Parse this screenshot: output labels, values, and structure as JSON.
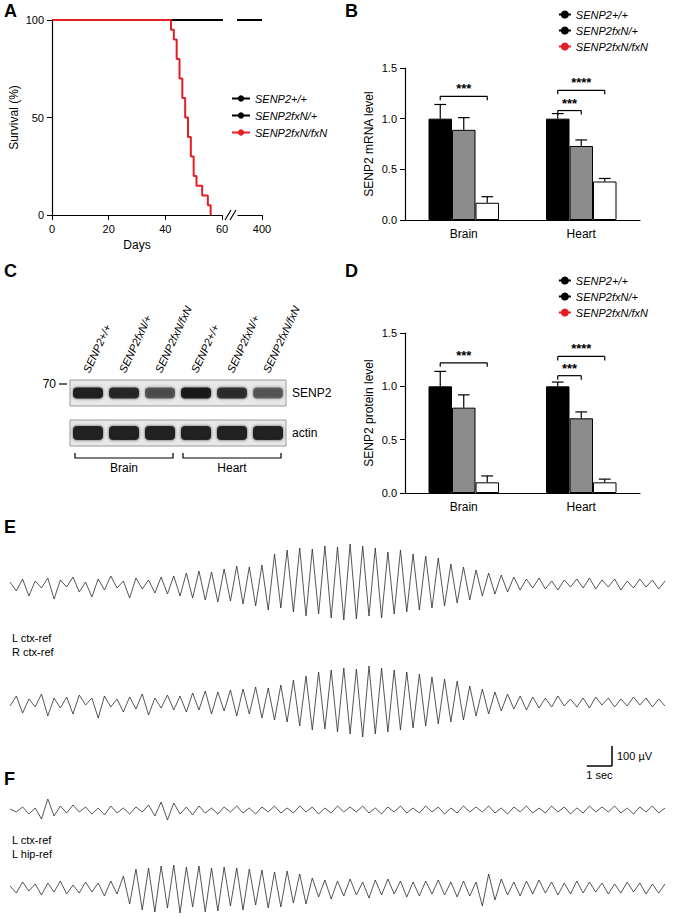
{
  "chart_data": [
    {
      "panel": "A",
      "type": "line",
      "xlabel": "Days",
      "ylabel": "Survival (%)",
      "xlim": [
        0,
        400
      ],
      "xticks": [
        0,
        20,
        40,
        60,
        400
      ],
      "x_break": [
        60,
        390
      ],
      "ylim": [
        0,
        100
      ],
      "yticks": [
        0,
        50,
        100
      ],
      "grid": false,
      "legend": "right",
      "series": [
        {
          "name": "SENP2+/+",
          "color": "#000000",
          "x": [
            0,
            400
          ],
          "values": [
            100,
            100
          ]
        },
        {
          "name": "SENP2fxN/+",
          "color": "#000000",
          "x": [
            0,
            400
          ],
          "values": [
            100,
            100
          ]
        },
        {
          "name": "SENP2fxN/fxN",
          "color": "#e41e26",
          "line_style": "step",
          "x": [
            0,
            42,
            43,
            44,
            45,
            46,
            47,
            48,
            49,
            50,
            51,
            53,
            55,
            56
          ],
          "values": [
            100,
            95,
            90,
            80,
            70,
            60,
            50,
            40,
            30,
            20,
            15,
            10,
            5,
            0
          ]
        }
      ]
    },
    {
      "panel": "B",
      "type": "bar",
      "ylabel": "SENP2 mRNA level",
      "categories": [
        "Brain",
        "Heart"
      ],
      "ylim": [
        0,
        1.5
      ],
      "yticks": [
        {
          "value": 0,
          "label": "0.0"
        },
        0.5,
        {
          "value": 1,
          "label": "1.0"
        },
        1.5
      ],
      "grid": false,
      "legend": "top-right",
      "series": [
        {
          "name": "SENP2+/+",
          "color": "#000000",
          "values": [
            1.0,
            1.0
          ],
          "errors": [
            0.14,
            0.05
          ]
        },
        {
          "name": "SENP2fxN/+",
          "color": "#8c8c8c",
          "values": [
            0.89,
            0.73
          ],
          "errors": [
            0.12,
            0.06
          ]
        },
        {
          "name": "SENP2fxN/fxN",
          "color": "#ffffff",
          "values": [
            0.17,
            0.38
          ],
          "errors": [
            0.06,
            0.03
          ]
        }
      ],
      "annotations": [
        {
          "text": "***",
          "category": "Brain",
          "from": "SENP2+/+",
          "to": "SENP2fxN/fxN",
          "y": 1.22
        },
        {
          "text": "***",
          "category": "Heart",
          "from": "SENP2+/+",
          "to": "SENP2fxN/+",
          "y": 1.08
        },
        {
          "text": "****",
          "category": "Heart",
          "from": "SENP2+/+",
          "to": "SENP2fxN/fxN",
          "y": 1.28
        }
      ]
    },
    {
      "panel": "C",
      "type": "blot",
      "lanes": [
        "SENP2+/+",
        "SENP2fxN/+",
        "SENP2fxN/fxN",
        "SENP2+/+",
        "SENP2fxN/+",
        "SENP2fxN/fxN"
      ],
      "groups": [
        "Brain",
        "Heart"
      ],
      "size_label": "70",
      "rows": [
        {
          "label": "SENP2",
          "intensity": [
            0.85,
            0.8,
            0.55,
            0.9,
            0.75,
            0.5
          ]
        },
        {
          "label": "actin",
          "intensity": [
            0.85,
            0.85,
            0.85,
            0.85,
            0.85,
            0.85
          ]
        }
      ]
    },
    {
      "panel": "D",
      "type": "bar",
      "ylabel": "SENP2 protein level",
      "categories": [
        "Brain",
        "Heart"
      ],
      "ylim": [
        0,
        1.5
      ],
      "yticks": [
        {
          "value": 0,
          "label": "0.0"
        },
        0.5,
        {
          "value": 1,
          "label": "1.0"
        },
        1.5
      ],
      "grid": false,
      "legend": "top-right",
      "series": [
        {
          "name": "SENP2+/+",
          "color": "#000000",
          "values": [
            1.0,
            1.0
          ],
          "errors": [
            0.14,
            0.04
          ]
        },
        {
          "name": "SENP2fxN/+",
          "color": "#8c8c8c",
          "values": [
            0.8,
            0.7
          ],
          "errors": [
            0.12,
            0.06
          ]
        },
        {
          "name": "SENP2fxN/fxN",
          "color": "#ffffff",
          "values": [
            0.1,
            0.1
          ],
          "errors": [
            0.06,
            0.03
          ]
        }
      ],
      "annotations": [
        {
          "text": "***",
          "category": "Brain",
          "from": "SENP2+/+",
          "to": "SENP2fxN/fxN",
          "y": 1.22
        },
        {
          "text": "***",
          "category": "Heart",
          "from": "SENP2+/+",
          "to": "SENP2fxN/+",
          "y": 1.1
        },
        {
          "text": "****",
          "category": "Heart",
          "from": "SENP2+/+",
          "to": "SENP2fxN/fxN",
          "y": 1.28
        }
      ]
    },
    {
      "panel": "E",
      "type": "line",
      "tick_labels": false,
      "color": "#2b2b2b",
      "xlim": [
        0,
        26
      ],
      "scale_bar": {
        "time": 1,
        "time_label": "1 sec",
        "amplitude": 100,
        "amplitude_label": "100 µV"
      },
      "x": [
        0,
        0.25,
        0.5,
        0.75,
        1,
        1.25,
        1.5,
        1.75,
        2,
        2.25,
        2.5,
        2.75,
        3,
        3.25,
        3.5,
        3.75,
        4,
        4.25,
        4.5,
        4.75,
        5,
        5.25,
        5.5,
        5.75,
        6,
        6.25,
        6.5,
        6.75,
        7,
        7.25,
        7.5,
        7.75,
        8,
        8.25,
        8.5,
        8.75,
        9,
        9.25,
        9.5,
        9.75,
        10,
        10.25,
        10.5,
        10.75,
        11,
        11.25,
        11.5,
        11.75,
        12,
        12.25,
        12.5,
        12.75,
        13,
        13.25,
        13.5,
        13.75,
        14,
        14.25,
        14.5,
        14.75,
        15,
        15.25,
        15.5,
        15.75,
        16,
        16.25,
        16.5,
        16.75,
        17,
        17.25,
        17.5,
        17.75,
        18,
        18.25,
        18.5,
        18.75,
        19,
        19.25,
        19.5,
        19.75,
        20,
        20.25,
        20.5,
        20.75,
        21,
        21.25,
        21.5,
        21.75,
        22,
        22.25,
        22.5,
        22.75,
        23,
        23.25,
        23.5,
        23.75,
        24,
        24.25,
        24.5,
        24.75,
        25,
        25.25,
        25.5,
        25.75,
        26
      ],
      "series": [
        {
          "name": "L ctx-ref",
          "ylim": [
            -220,
            220
          ],
          "values": [
            10,
            -35,
            25,
            -60,
            15,
            -20,
            30,
            -75,
            20,
            -15,
            35,
            -40,
            10,
            -65,
            25,
            -30,
            40,
            -20,
            15,
            -70,
            30,
            -25,
            20,
            -45,
            35,
            -50,
            40,
            -60,
            55,
            -70,
            65,
            -80,
            60,
            -90,
            75,
            -85,
            90,
            -100,
            85,
            -110,
            95,
            -130,
            150,
            -120,
            170,
            -140,
            180,
            -160,
            175,
            -150,
            190,
            -170,
            185,
            -180,
            200,
            -175,
            190,
            -160,
            180,
            -170,
            160,
            -150,
            170,
            -140,
            150,
            -130,
            140,
            -120,
            130,
            -110,
            100,
            -95,
            85,
            -80,
            70,
            -60,
            55,
            -50,
            45,
            -40,
            35,
            -30,
            25,
            -20,
            30,
            -25,
            15,
            -30,
            20,
            -15,
            25,
            -20,
            30,
            -25,
            20,
            -15,
            25,
            -30,
            15,
            -20,
            25,
            -15,
            20,
            -25,
            15
          ]
        },
        {
          "name": "R ctx-ref",
          "ylim": [
            -200,
            200
          ],
          "values": [
            -20,
            30,
            -55,
            15,
            -25,
            40,
            -70,
            20,
            -30,
            25,
            -60,
            35,
            -15,
            20,
            -80,
            30,
            -25,
            15,
            -50,
            25,
            -35,
            40,
            -65,
            20,
            -30,
            35,
            -40,
            30,
            -50,
            45,
            -40,
            55,
            -60,
            50,
            -45,
            60,
            -70,
            65,
            -60,
            75,
            -80,
            70,
            -90,
            85,
            -100,
            110,
            -120,
            130,
            -140,
            150,
            -135,
            160,
            -150,
            170,
            -160,
            165,
            -175,
            180,
            -160,
            170,
            -150,
            160,
            -140,
            150,
            -130,
            140,
            -120,
            125,
            -110,
            115,
            -100,
            105,
            -90,
            80,
            -70,
            65,
            -60,
            50,
            -45,
            40,
            -35,
            30,
            -40,
            25,
            -30,
            20,
            -25,
            30,
            -20,
            15,
            -25,
            20,
            -30,
            25,
            -15,
            20,
            -25,
            15,
            -20,
            25,
            -15,
            20,
            -25,
            15,
            -20
          ]
        }
      ]
    },
    {
      "panel": "F",
      "type": "line",
      "tick_labels": false,
      "color": "#2b2b2b",
      "xlim": [
        0,
        26
      ],
      "x": [
        0,
        0.25,
        0.5,
        0.75,
        1,
        1.25,
        1.5,
        1.75,
        2,
        2.25,
        2.5,
        2.75,
        3,
        3.25,
        3.5,
        3.75,
        4,
        4.25,
        4.5,
        4.75,
        5,
        5.25,
        5.5,
        5.75,
        6,
        6.25,
        6.5,
        6.75,
        7,
        7.25,
        7.5,
        7.75,
        8,
        8.25,
        8.5,
        8.75,
        9,
        9.25,
        9.5,
        9.75,
        10,
        10.25,
        10.5,
        10.75,
        11,
        11.25,
        11.5,
        11.75,
        12,
        12.25,
        12.5,
        12.75,
        13,
        13.25,
        13.5,
        13.75,
        14,
        14.25,
        14.5,
        14.75,
        15,
        15.25,
        15.5,
        15.75,
        16,
        16.25,
        16.5,
        16.75,
        17,
        17.25,
        17.5,
        17.75,
        18,
        18.25,
        18.5,
        18.75,
        19,
        19.25,
        19.5,
        19.75,
        20,
        20.25,
        20.5,
        20.75,
        21,
        21.25,
        21.5,
        21.75,
        22,
        22.25,
        22.5,
        22.75,
        23,
        23.25,
        23.5,
        23.75,
        24,
        24.25,
        24.5,
        24.75,
        25,
        25.25,
        25.5,
        25.75,
        26
      ],
      "series": [
        {
          "name": "L ctx-ref",
          "ylim": [
            -100,
            100
          ],
          "values": [
            5,
            -10,
            15,
            -20,
            10,
            -45,
            55,
            -30,
            20,
            -15,
            25,
            -10,
            15,
            -20,
            10,
            -25,
            20,
            -15,
            10,
            -20,
            15,
            -10,
            25,
            -30,
            40,
            -50,
            35,
            -20,
            15,
            -25,
            20,
            -15,
            10,
            -20,
            15,
            -10,
            20,
            -15,
            10,
            -20,
            15,
            -10,
            20,
            -15,
            10,
            -15,
            20,
            -10,
            15,
            -20,
            10,
            -15,
            20,
            -10,
            15,
            -10,
            20,
            -15,
            10,
            -20,
            15,
            -10,
            20,
            -15,
            10,
            -15,
            20,
            -10,
            15,
            -20,
            10,
            -15,
            20,
            -10,
            15,
            -10,
            20,
            -15,
            10,
            -20,
            15,
            -10,
            20,
            -15,
            10,
            -15,
            20,
            -10,
            15,
            -20,
            10,
            -15,
            20,
            -10,
            15,
            -10,
            20,
            -15,
            10,
            -20,
            15,
            -10,
            20,
            -15,
            10
          ]
        },
        {
          "name": "L hip-ref",
          "ylim": [
            -130,
            130
          ],
          "values": [
            10,
            -25,
            30,
            -15,
            20,
            -35,
            25,
            -20,
            35,
            -30,
            15,
            -25,
            30,
            -20,
            25,
            -40,
            35,
            -30,
            60,
            -80,
            95,
            -110,
            100,
            -120,
            110,
            -100,
            115,
            -125,
            105,
            -95,
            110,
            -120,
            100,
            -115,
            105,
            -90,
            100,
            -110,
            95,
            -85,
            90,
            -100,
            80,
            -95,
            85,
            -75,
            70,
            -80,
            50,
            -45,
            40,
            -55,
            35,
            -40,
            45,
            -35,
            30,
            -50,
            40,
            -35,
            45,
            -30,
            35,
            -45,
            30,
            -40,
            35,
            -30,
            40,
            -35,
            30,
            -45,
            35,
            -40,
            30,
            -90,
            70,
            -60,
            45,
            -35,
            30,
            -40,
            35,
            -30,
            40,
            -25,
            30,
            -35,
            25,
            -30,
            35,
            -25,
            30,
            -20,
            25,
            -30,
            20,
            -25,
            30,
            -20,
            25,
            -30,
            20,
            -25,
            20
          ]
        }
      ]
    }
  ]
}
